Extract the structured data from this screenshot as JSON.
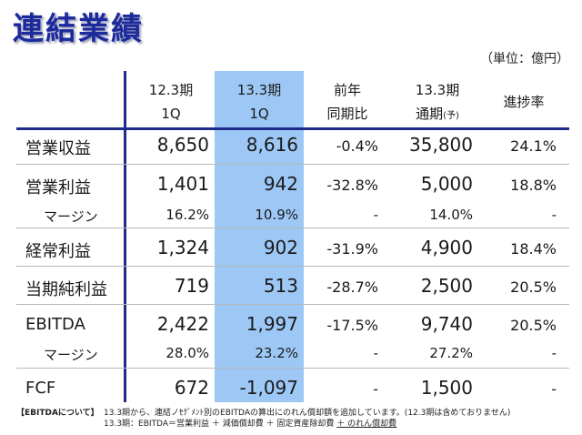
{
  "title": "連結業績",
  "unit": "（単位：億円）",
  "columns": {
    "c1": [
      "12.3期",
      "1Q"
    ],
    "c2": [
      "13.3期",
      "1Q"
    ],
    "c3": [
      "前年",
      "同期比"
    ],
    "c4": [
      "13.3期",
      "通期",
      "(予)"
    ],
    "c5": "進捗率"
  },
  "rows": [
    {
      "label": "営業収益",
      "v1": "8,650",
      "v2": "8,616",
      "v3": "-0.4%",
      "v4": "35,800",
      "v5": "24.1%"
    },
    {
      "label": "営業利益",
      "v1": "1,401",
      "v2": "942",
      "v3": "-32.8%",
      "v4": "5,000",
      "v5": "18.8%"
    },
    {
      "label": "マージン",
      "v1": "16.2%",
      "v2": "10.9%",
      "v3": "-",
      "v4": "14.0%",
      "v5": "-"
    },
    {
      "label": "経常利益",
      "v1": "1,324",
      "v2": "902",
      "v3": "-31.9%",
      "v4": "4,900",
      "v5": "18.4%"
    },
    {
      "label": "当期純利益",
      "v1": "719",
      "v2": "513",
      "v3": "-28.7%",
      "v4": "2,500",
      "v5": "20.5%"
    },
    {
      "label": "EBITDA",
      "v1": "2,422",
      "v2": "1,997",
      "v3": "-17.5%",
      "v4": "9,740",
      "v5": "20.5%"
    },
    {
      "label": "マージン",
      "v1": "28.0%",
      "v2": "23.2%",
      "v3": "-",
      "v4": "27.2%",
      "v5": "-"
    },
    {
      "label": "FCF",
      "v1": "672",
      "v2": "-1,097",
      "v3": "-",
      "v4": "1,500",
      "v5": "-"
    }
  ],
  "note": {
    "tag": "【EBITDAについて】",
    "line1": "13.3期から、連結ノｾｸﾞﾒﾝﾄ別のEBITDAの算出にのれん償却額を追加しています。(12.3期は含めておりません)",
    "line2": "13.3期：EBITDA＝営業利益 ＋ 減価償却費 ＋ 固定資産除却費 ",
    "line2u": "＋ のれん償却費"
  }
}
